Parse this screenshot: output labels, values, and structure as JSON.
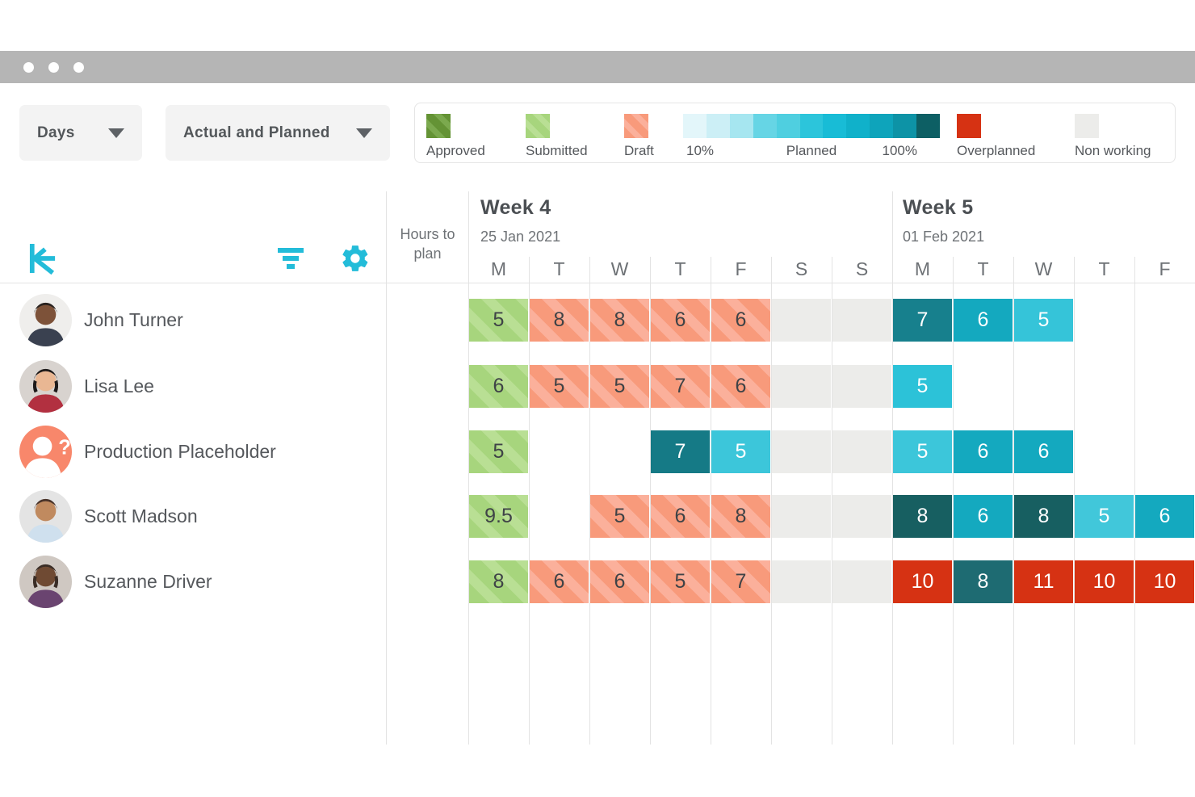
{
  "window": {
    "dots": [
      "dot",
      "dot",
      "dot"
    ]
  },
  "toolbar": {
    "view_dropdown": {
      "label": "Days"
    },
    "mode_dropdown": {
      "label": "Actual and Planned"
    }
  },
  "legend": {
    "approved": {
      "label": "Approved"
    },
    "submitted": {
      "label": "Submitted"
    },
    "draft": {
      "label": "Draft"
    },
    "gradient": {
      "start_label": "10%",
      "mid_label": "Planned",
      "end_label": "100%",
      "colors": [
        "#e3f6fa",
        "#cceff6",
        "#a6e6f0",
        "#66d5e5",
        "#4fcfe0",
        "#2cc5db",
        "#18bcd6",
        "#10b1ca",
        "#0ea4bb",
        "#0d93a6",
        "#0d5f64"
      ]
    },
    "overplanned": {
      "label": "Overplanned"
    },
    "nonworking": {
      "label": "Non working"
    }
  },
  "grid": {
    "hours_to_plan_label": "Hours to plan",
    "weeks": [
      {
        "title": "Week 4",
        "date": "25 Jan 2021",
        "days": [
          "M",
          "T",
          "W",
          "T",
          "F",
          "S",
          "S"
        ]
      },
      {
        "title": "Week 5",
        "date": "01 Feb 2021",
        "days": [
          "M",
          "T",
          "W",
          "T",
          "F"
        ]
      }
    ],
    "rows": [
      {
        "name": "John Turner",
        "avatar": {
          "bg": "#efeeec",
          "skin": "#7d5239",
          "hair": "#2a2320",
          "shirt": "#3a4150"
        },
        "cells": [
          {
            "v": "5",
            "t": "sub"
          },
          {
            "v": "8",
            "t": "draft"
          },
          {
            "v": "8",
            "t": "draft"
          },
          {
            "v": "6",
            "t": "draft"
          },
          {
            "v": "6",
            "t": "draft"
          },
          {
            "t": "nw"
          },
          {
            "t": "nw"
          },
          {
            "v": "7",
            "t": "plan",
            "c": "#17808d"
          },
          {
            "v": "6",
            "t": "plan",
            "c": "#14a9bf"
          },
          {
            "v": "5",
            "t": "plan",
            "c": "#35c4d9"
          },
          {
            "t": "empty"
          },
          {
            "t": "empty"
          }
        ]
      },
      {
        "name": "Lisa Lee",
        "avatar": {
          "bg": "#d8d3cf",
          "skin": "#e9b793",
          "hair": "#1e1a1a",
          "shirt": "#b23040"
        },
        "cells": [
          {
            "v": "6",
            "t": "sub"
          },
          {
            "v": "5",
            "t": "draft"
          },
          {
            "v": "5",
            "t": "draft"
          },
          {
            "v": "7",
            "t": "draft"
          },
          {
            "v": "6",
            "t": "draft"
          },
          {
            "t": "nw"
          },
          {
            "t": "nw"
          },
          {
            "v": "5",
            "t": "plan",
            "c": "#2cc2d8"
          },
          {
            "t": "empty"
          },
          {
            "t": "empty"
          },
          {
            "t": "empty"
          },
          {
            "t": "empty"
          }
        ]
      },
      {
        "name": "Production Placeholder",
        "avatar": {
          "placeholder": true,
          "bg": "#f8876b"
        },
        "cells": [
          {
            "v": "5",
            "t": "sub"
          },
          {
            "t": "empty"
          },
          {
            "t": "empty"
          },
          {
            "v": "7",
            "t": "plan",
            "c": "#157a86"
          },
          {
            "v": "5",
            "t": "plan",
            "c": "#3cc6da"
          },
          {
            "t": "nw"
          },
          {
            "t": "nw"
          },
          {
            "v": "5",
            "t": "plan",
            "c": "#3cc6da"
          },
          {
            "v": "6",
            "t": "plan",
            "c": "#14a9bf"
          },
          {
            "v": "6",
            "t": "plan",
            "c": "#14a9bf"
          },
          {
            "t": "empty"
          },
          {
            "t": "empty"
          }
        ]
      },
      {
        "name": "Scott Madson",
        "avatar": {
          "bg": "#e4e4e4",
          "skin": "#c08a5f",
          "hair": "#4a342a",
          "shirt": "#cfe0ee"
        },
        "cells": [
          {
            "v": "9.5",
            "t": "sub"
          },
          {
            "t": "empty"
          },
          {
            "v": "5",
            "t": "draft"
          },
          {
            "v": "6",
            "t": "draft"
          },
          {
            "v": "8",
            "t": "draft"
          },
          {
            "t": "nw"
          },
          {
            "t": "nw"
          },
          {
            "v": "8",
            "t": "plan",
            "c": "#175f61"
          },
          {
            "v": "6",
            "t": "plan",
            "c": "#14a9bf"
          },
          {
            "v": "8",
            "t": "plan",
            "c": "#175f61"
          },
          {
            "v": "5",
            "t": "plan",
            "c": "#41c7da"
          },
          {
            "v": "6",
            "t": "plan",
            "c": "#14a9bf"
          }
        ]
      },
      {
        "name": "Suzanne Driver",
        "avatar": {
          "bg": "#cfc8c2",
          "skin": "#6f4a33",
          "hair": "#3a2d26",
          "shirt": "#6a4470"
        },
        "cells": [
          {
            "v": "8",
            "t": "sub"
          },
          {
            "v": "6",
            "t": "draft"
          },
          {
            "v": "6",
            "t": "draft"
          },
          {
            "v": "5",
            "t": "draft"
          },
          {
            "v": "7",
            "t": "draft"
          },
          {
            "t": "nw"
          },
          {
            "t": "nw"
          },
          {
            "v": "10",
            "t": "over"
          },
          {
            "v": "8",
            "t": "plan",
            "c": "#1e6b72"
          },
          {
            "v": "11",
            "t": "over"
          },
          {
            "v": "10",
            "t": "over"
          },
          {
            "v": "10",
            "t": "over"
          }
        ]
      }
    ]
  },
  "colors": {
    "accent_cyan": "#23bcd9",
    "approved_green": "#649335",
    "submitted_green": "#a7d57d",
    "draft_salmon": "#f89a7b",
    "overplanned_red": "#d63213",
    "nonworking_gray": "#ececea",
    "browser_bar": "#b5b5b5"
  }
}
